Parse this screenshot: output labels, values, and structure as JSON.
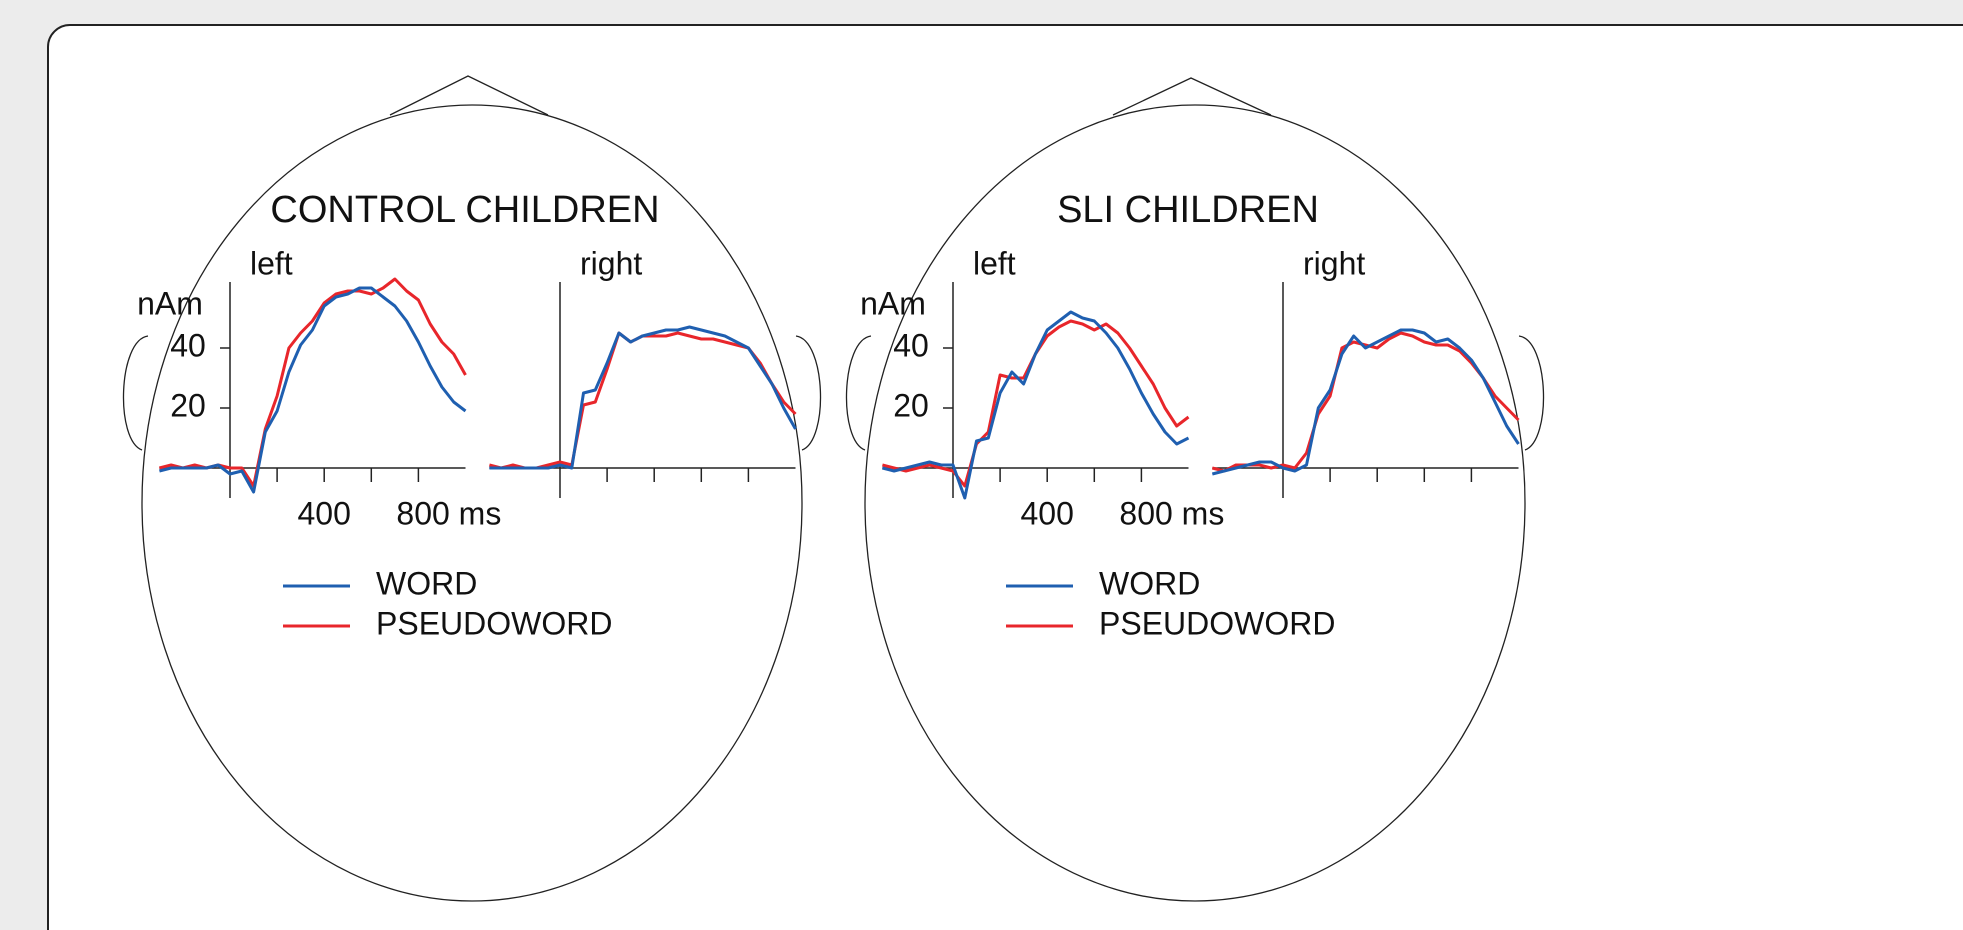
{
  "chart_data": [
    {
      "type": "line",
      "title": "CONTROL CHILDREN",
      "ylabel": "nAm",
      "panels": [
        "left",
        "right"
      ],
      "x": [
        -300,
        -250,
        -200,
        -150,
        -100,
        -50,
        0,
        50,
        100,
        150,
        200,
        250,
        300,
        350,
        400,
        450,
        500,
        550,
        600,
        650,
        700,
        750,
        800,
        850,
        900,
        950,
        1000
      ],
      "xlim": [
        -300,
        1000
      ],
      "xticks": [
        {
          "value": 200,
          "label": null
        },
        400,
        {
          "value": 600,
          "label": null
        },
        {
          "value": 800,
          "label": "800 ms"
        }
      ],
      "ylim": [
        -10,
        62
      ],
      "yticks": [
        20,
        40
      ],
      "grid": false,
      "series": [
        {
          "name": "WORD",
          "color": "#1f5fb0",
          "values": [
            [
              -1,
              0,
              0,
              0,
              0,
              1,
              -2,
              -1,
              -8,
              12,
              19,
              32,
              41,
              46,
              54,
              57,
              58,
              60,
              60,
              57,
              54,
              49,
              42,
              34,
              27,
              22,
              19
            ],
            [
              0,
              0,
              0,
              0,
              0,
              0,
              1,
              0,
              25,
              26,
              35,
              45,
              42,
              44,
              45,
              46,
              46,
              47,
              46,
              45,
              44,
              42,
              40,
              34,
              28,
              20,
              13
            ]
          ]
        },
        {
          "name": "PSEUDOWORD",
          "color": "#e8262b",
          "values": [
            [
              0,
              1,
              0,
              1,
              0,
              1,
              0,
              0,
              -6,
              13,
              24,
              40,
              45,
              49,
              55,
              58,
              59,
              59,
              58,
              60,
              63,
              59,
              56,
              48,
              42,
              38,
              31
            ],
            [
              1,
              0,
              1,
              0,
              0,
              1,
              2,
              1,
              21,
              22,
              33,
              45,
              42,
              44,
              44,
              44,
              45,
              44,
              43,
              43,
              42,
              41,
              40,
              35,
              28,
              22,
              18
            ]
          ]
        }
      ]
    },
    {
      "type": "line",
      "title": "SLI CHILDREN",
      "ylabel": "nAm",
      "panels": [
        "left",
        "right"
      ],
      "x": [
        -300,
        -250,
        -200,
        -150,
        -100,
        -50,
        0,
        50,
        100,
        150,
        200,
        250,
        300,
        350,
        400,
        450,
        500,
        550,
        600,
        650,
        700,
        750,
        800,
        850,
        900,
        950,
        1000
      ],
      "xlim": [
        -300,
        1000
      ],
      "xticks": [
        {
          "value": 200,
          "label": null
        },
        400,
        {
          "value": 600,
          "label": null
        },
        {
          "value": 800,
          "label": "800 ms"
        }
      ],
      "ylim": [
        -10,
        62
      ],
      "yticks": [
        20,
        40
      ],
      "grid": false,
      "series": [
        {
          "name": "WORD",
          "color": "#1f5fb0",
          "values": [
            [
              0,
              -1,
              0,
              1,
              2,
              1,
              1,
              -10,
              9,
              10,
              25,
              32,
              28,
              38,
              46,
              49,
              52,
              50,
              49,
              45,
              40,
              33,
              25,
              18,
              12,
              8,
              10
            ],
            [
              -2,
              -1,
              0,
              1,
              2,
              2,
              0,
              -1,
              1,
              20,
              26,
              38,
              44,
              40,
              42,
              44,
              46,
              46,
              45,
              42,
              43,
              40,
              36,
              30,
              22,
              14,
              8
            ]
          ]
        },
        {
          "name": "PSEUDOWORD",
          "color": "#e8262b",
          "values": [
            [
              1,
              0,
              -1,
              0,
              1,
              0,
              -1,
              -6,
              8,
              12,
              31,
              30,
              30,
              38,
              44,
              47,
              49,
              48,
              46,
              48,
              45,
              40,
              34,
              28,
              20,
              14,
              17
            ],
            [
              0,
              -1,
              1,
              1,
              1,
              0,
              1,
              0,
              5,
              18,
              24,
              40,
              42,
              41,
              40,
              43,
              45,
              44,
              42,
              41,
              41,
              39,
              35,
              30,
              24,
              20,
              16
            ]
          ]
        }
      ]
    }
  ]
}
